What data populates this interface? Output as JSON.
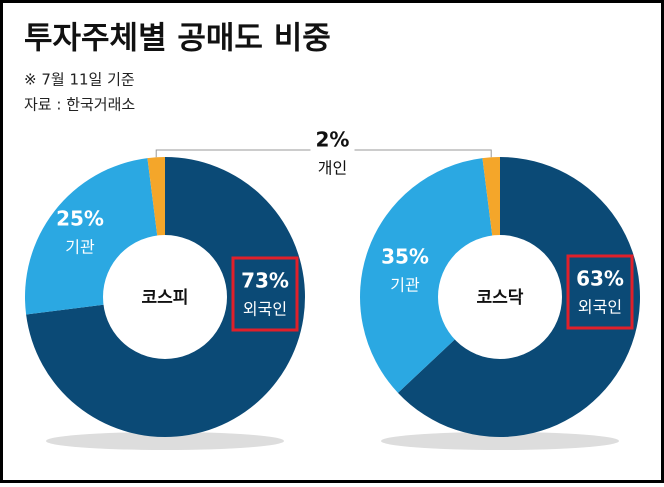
{
  "title": "투자주체별 공매도 비중",
  "note": "※ 7월 11일 기준",
  "source": "자료 : 한국거래소",
  "chart_data": [
    {
      "type": "pie",
      "center_label": "코스피",
      "categories": [
        "외국인",
        "기관",
        "개인"
      ],
      "values": [
        73,
        25,
        2
      ],
      "value_labels": [
        "73%",
        "25%",
        "2%"
      ],
      "colors": [
        "#0b4a76",
        "#2ba8e2",
        "#f4a62a"
      ]
    },
    {
      "type": "pie",
      "center_label": "코스닥",
      "categories": [
        "외국인",
        "기관",
        null
      ],
      "values": [
        63,
        35,
        2
      ],
      "value_labels": [
        "63%",
        "35%",
        null
      ],
      "colors": [
        "#0b4a76",
        "#2ba8e2",
        "#f4a62a"
      ]
    }
  ]
}
